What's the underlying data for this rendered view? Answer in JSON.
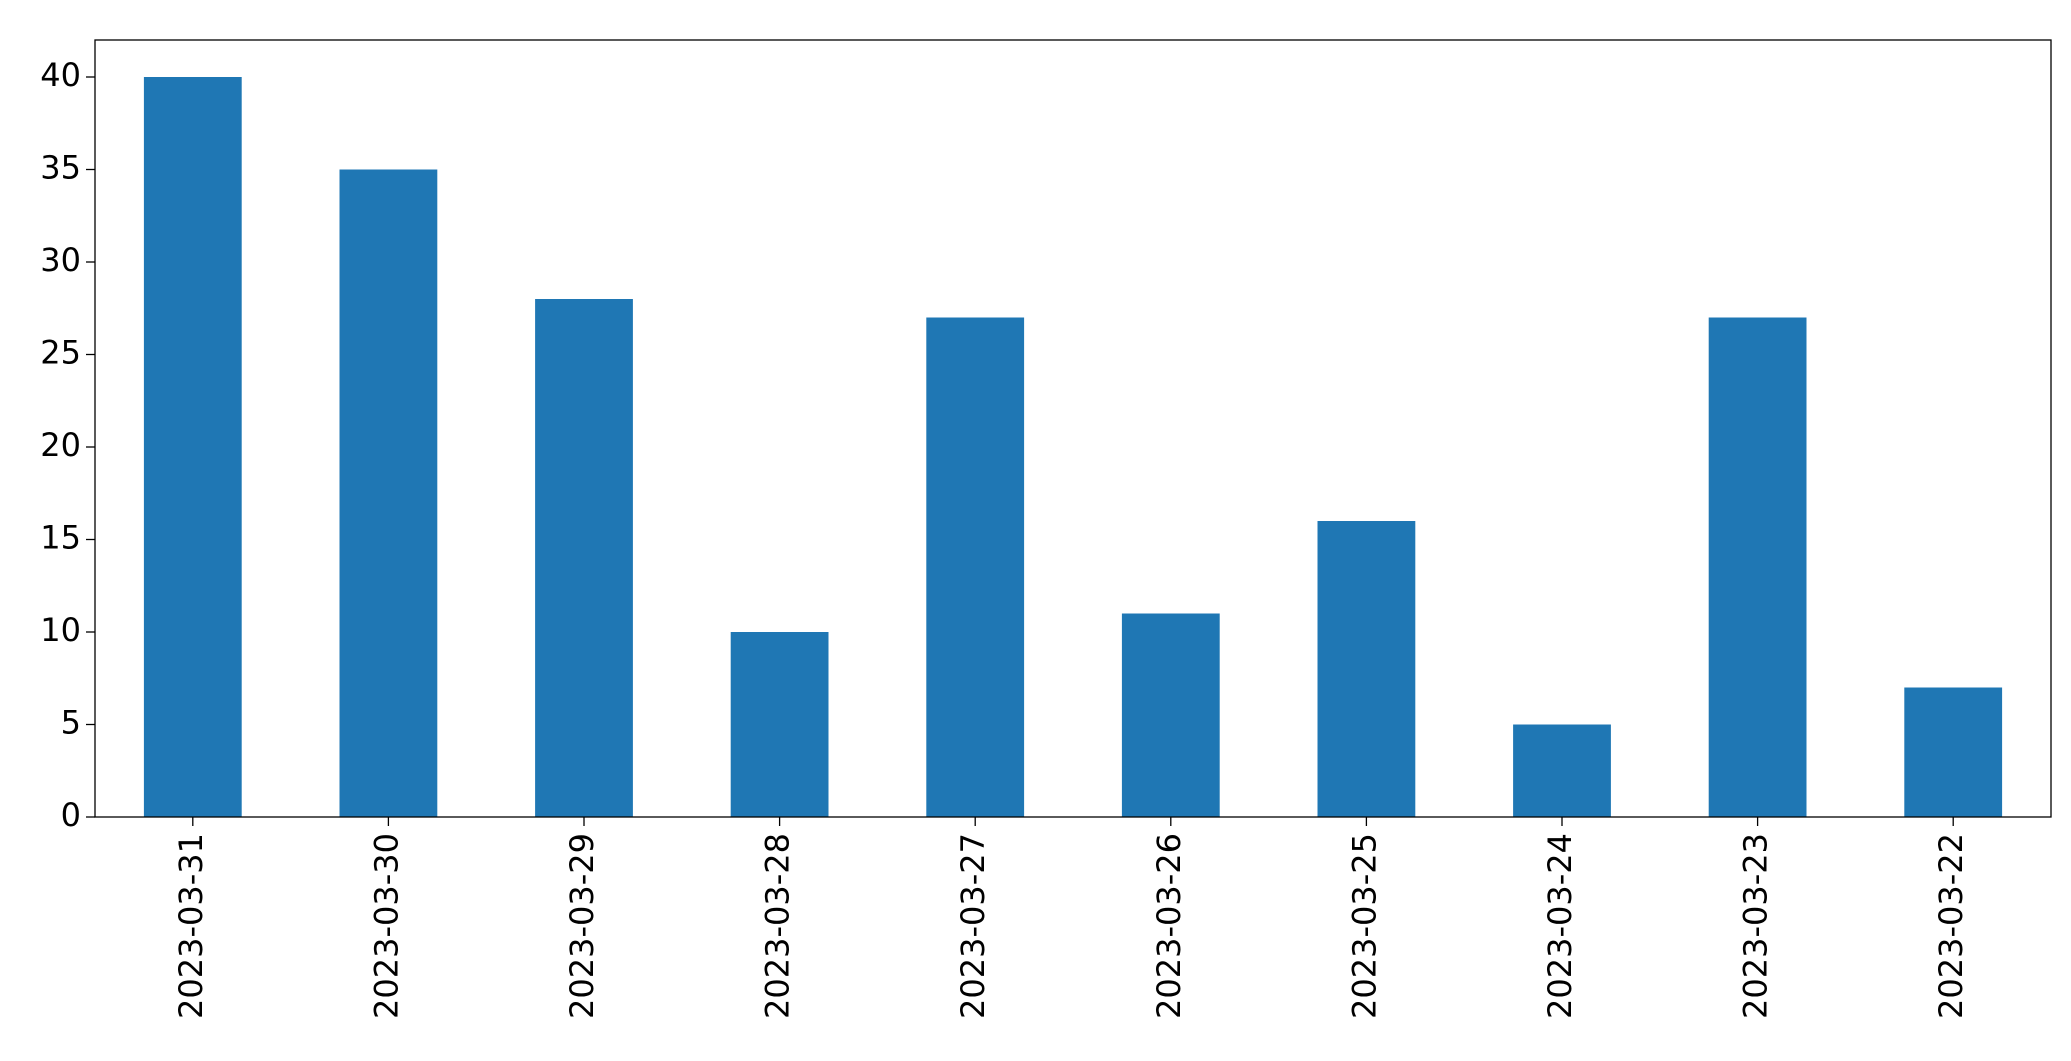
{
  "chart_data": {
    "type": "bar",
    "categories": [
      "2023-03-31",
      "2023-03-30",
      "2023-03-29",
      "2023-03-28",
      "2023-03-27",
      "2023-03-26",
      "2023-03-25",
      "2023-03-24",
      "2023-03-23",
      "2023-03-22"
    ],
    "values": [
      40,
      35,
      28,
      10,
      27,
      11,
      16,
      5,
      27,
      7
    ],
    "color": "#1f77b4",
    "ylim": [
      0,
      42
    ],
    "yticks": [
      0,
      5,
      10,
      15,
      20,
      25,
      30,
      35,
      40
    ],
    "grid": false
  }
}
